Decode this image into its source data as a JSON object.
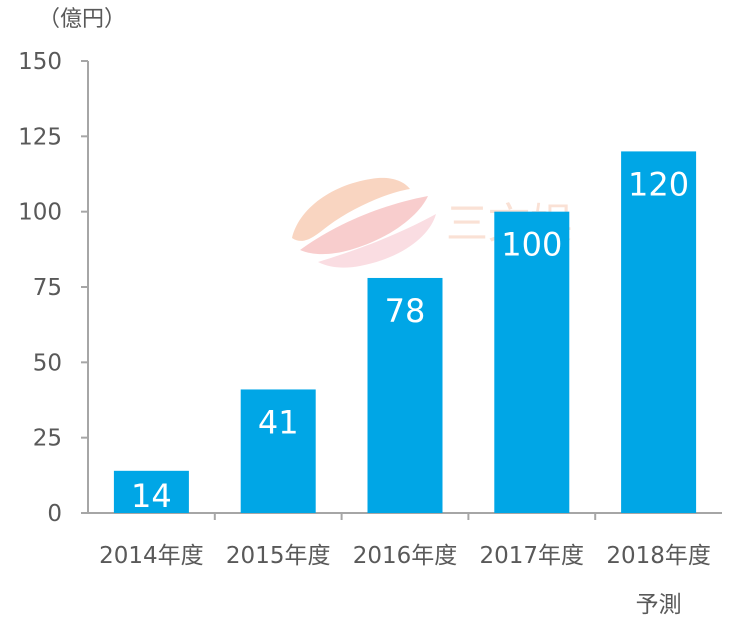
{
  "chart_data": {
    "type": "bar",
    "unit_label": "（億円）",
    "categories": [
      "2014年度",
      "2015年度",
      "2016年度",
      "2017年度",
      "2018年度"
    ],
    "category_sublabels": [
      "",
      "",
      "",
      "",
      "予測"
    ],
    "values": [
      14,
      41,
      78,
      100,
      120
    ],
    "data_labels": [
      "14",
      "41",
      "78",
      "100",
      "120"
    ],
    "yticks": [
      0,
      25,
      50,
      75,
      100,
      125,
      150
    ],
    "ylim": [
      0,
      150
    ],
    "grid": false,
    "legend": "none",
    "bar_color": "#00a6e6",
    "axis_color": "#a6a6a6",
    "text_color": "#595959"
  },
  "watermark": {
    "text": "三文娱",
    "icon": "watermark-logo-icon"
  }
}
